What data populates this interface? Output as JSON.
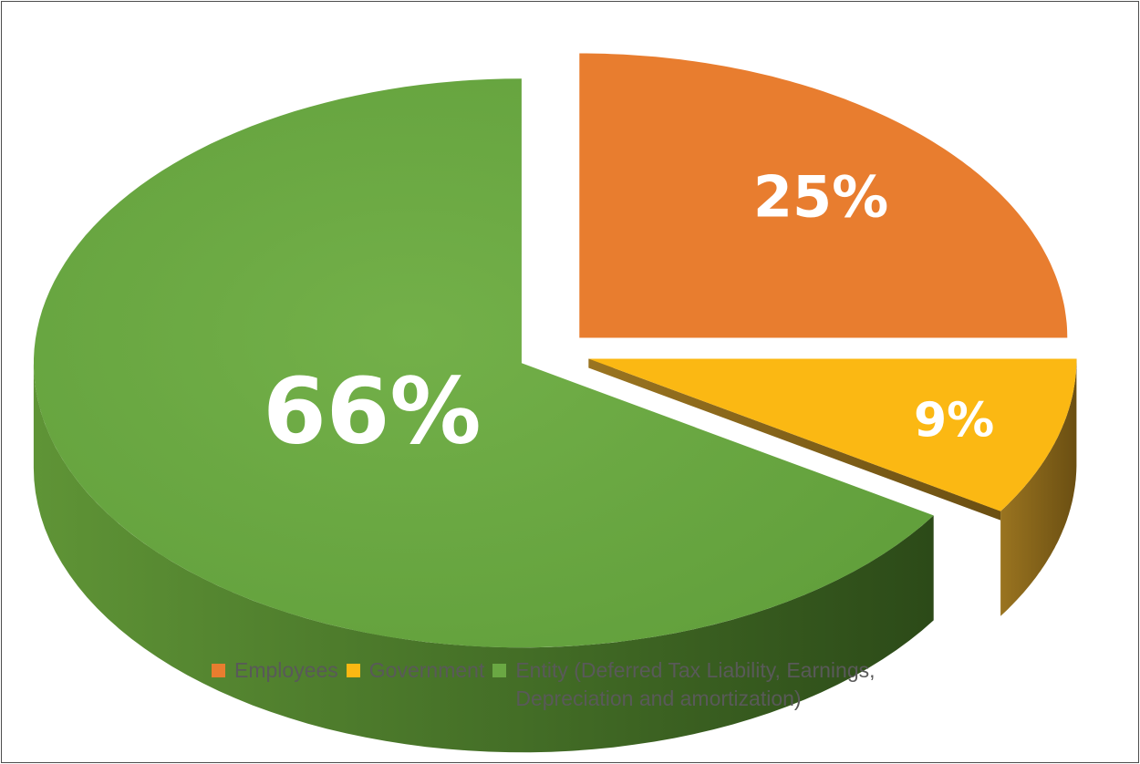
{
  "chart_data": {
    "type": "pie",
    "title": "",
    "categories": [
      "Employees",
      "Government",
      "Entity (Deferred Tax Liability, Earnings, Depreciation and amortization)"
    ],
    "values": [
      25,
      9,
      66
    ],
    "labels": [
      "25%",
      "9%",
      "66%"
    ],
    "colors": [
      "#e87d2f",
      "#fbb813",
      "#6aa843"
    ],
    "exploded": true,
    "style": "3d",
    "legend_position": "bottom"
  }
}
